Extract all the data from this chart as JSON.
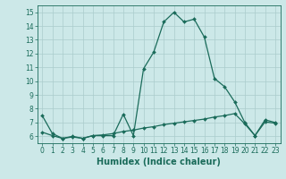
{
  "xlabel": "Humidex (Indice chaleur)",
  "xlim": [
    -0.5,
    23.5
  ],
  "ylim": [
    5.5,
    15.5
  ],
  "yticks": [
    6,
    7,
    8,
    9,
    10,
    11,
    12,
    13,
    14,
    15
  ],
  "xticks": [
    0,
    1,
    2,
    3,
    4,
    5,
    6,
    7,
    8,
    9,
    10,
    11,
    12,
    13,
    14,
    15,
    16,
    17,
    18,
    19,
    20,
    21,
    22,
    23
  ],
  "bg_color": "#cce8e8",
  "grid_color": "#aacccc",
  "line_color": "#1a6b5a",
  "series1_x": [
    0,
    1,
    2,
    3,
    4,
    5,
    6,
    7,
    8,
    9,
    10,
    11,
    12,
    13,
    14,
    15,
    16,
    17,
    18,
    19,
    20,
    21,
    22,
    23
  ],
  "series1_y": [
    7.5,
    6.2,
    5.85,
    6.0,
    5.85,
    6.05,
    6.05,
    6.05,
    7.6,
    6.05,
    10.9,
    12.1,
    14.3,
    15.0,
    14.3,
    14.5,
    13.2,
    10.2,
    9.6,
    8.5,
    7.0,
    6.05,
    7.2,
    7.0
  ],
  "series2_x": [
    0,
    1,
    2,
    3,
    4,
    5,
    6,
    7,
    8,
    9,
    10,
    11,
    12,
    13,
    14,
    15,
    16,
    17,
    18,
    19,
    20,
    21,
    22,
    23
  ],
  "series2_y": [
    6.3,
    6.05,
    5.85,
    5.95,
    5.85,
    6.05,
    6.1,
    6.2,
    6.35,
    6.45,
    6.6,
    6.7,
    6.85,
    6.95,
    7.05,
    7.15,
    7.25,
    7.4,
    7.5,
    7.65,
    6.9,
    6.05,
    7.05,
    6.95
  ],
  "xlabel_fontsize": 7,
  "tick_fontsize": 5.5
}
